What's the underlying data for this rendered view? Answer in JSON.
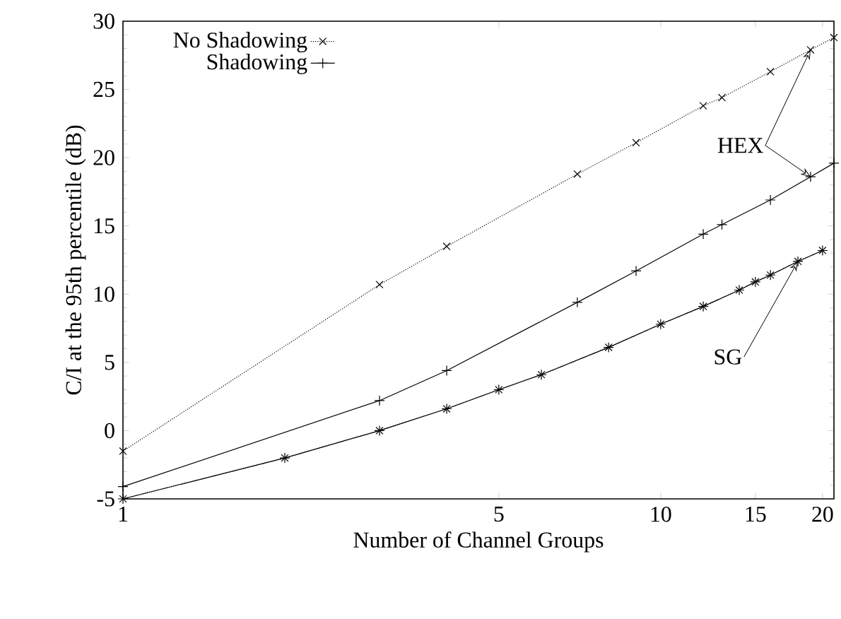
{
  "chart_data": {
    "type": "line",
    "xlabel": "Number of Channel Groups",
    "ylabel": "C/I at the 95th percentile (dB)",
    "log": "x",
    "xlim": [
      1,
      21
    ],
    "ylim": [
      -5,
      30
    ],
    "xticks": [
      1,
      5,
      10,
      15,
      20
    ],
    "yticks": [
      -5,
      0,
      5,
      10,
      15,
      20,
      25,
      30
    ],
    "legend": "top left",
    "grid": false,
    "series": [
      {
        "name": "No Shadowing",
        "color": "#000000",
        "line_style": "dotted",
        "marker": "cross",
        "x": [
          1,
          3,
          4,
          7,
          9,
          12,
          13,
          16,
          19,
          21
        ],
        "values": [
          -1.5,
          10.7,
          13.5,
          18.8,
          21.1,
          23.8,
          24.4,
          26.3,
          27.9,
          28.8
        ]
      },
      {
        "name": "Shadowing",
        "color": "#000000",
        "line_style": "solid",
        "marker": "plus",
        "x": [
          1,
          3,
          4,
          7,
          9,
          12,
          13,
          16,
          19,
          21
        ],
        "values": [
          -4.1,
          2.2,
          4.4,
          9.4,
          11.7,
          14.4,
          15.1,
          16.9,
          18.6,
          19.6
        ]
      },
      {
        "color": "#000000",
        "line_style": "dotted",
        "marker": "cross",
        "x": [
          1,
          2,
          3,
          4,
          5,
          6,
          8,
          10,
          12,
          14,
          15,
          16,
          18,
          20
        ],
        "values": [
          -5.0,
          -2.0,
          0.0,
          1.6,
          3.0,
          4.1,
          6.1,
          7.8,
          9.1,
          10.3,
          10.9,
          11.4,
          12.4,
          13.2
        ]
      },
      {
        "color": "#000000",
        "line_style": "solid",
        "marker": "plus",
        "x": [
          1,
          2,
          3,
          4,
          5,
          6,
          8,
          10,
          12,
          14,
          15,
          16,
          18,
          20
        ],
        "values": [
          -5.0,
          -2.0,
          0.0,
          1.6,
          3.0,
          4.1,
          6.1,
          7.8,
          9.1,
          10.3,
          10.9,
          11.4,
          12.4,
          13.2
        ]
      }
    ],
    "annotations": [
      {
        "text": "HEX",
        "x": 19,
        "y": 27.9
      },
      {
        "text": "SG",
        "x": 18,
        "y": 12.4
      }
    ]
  }
}
